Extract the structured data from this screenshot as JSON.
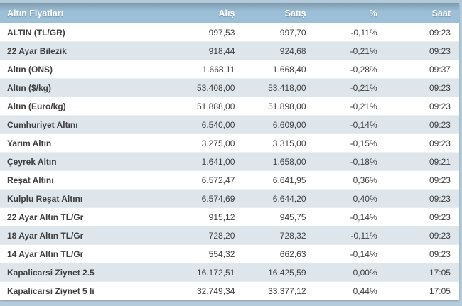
{
  "theme": {
    "page_bg": "#b4cbdb",
    "header_bg": "#9cc0d8",
    "header_fg": "#ffffff",
    "alt_row_bg": "#dee5eb",
    "text_color": "#3f3f3f"
  },
  "table": {
    "columns": {
      "name": "Altın Fiyatları",
      "buy": "Alış",
      "sell": "Satış",
      "pct": "%",
      "time": "Saat"
    },
    "rows": [
      {
        "name": "ALTIN (TL/GR)",
        "buy": "997,53",
        "sell": "997,70",
        "pct": "-0,11%",
        "time": "09:23"
      },
      {
        "name": "22 Ayar Bilezik",
        "buy": "918,44",
        "sell": "924,68",
        "pct": "-0,21%",
        "time": "09:23"
      },
      {
        "name": "Altın (ONS)",
        "buy": "1.668,11",
        "sell": "1.668,40",
        "pct": "-0,28%",
        "time": "09:37"
      },
      {
        "name": "Altın ($/kg)",
        "buy": "53.408,00",
        "sell": "53.418,00",
        "pct": "-0,21%",
        "time": "09:23"
      },
      {
        "name": "Altın (Euro/kg)",
        "buy": "51.888,00",
        "sell": "51.898,00",
        "pct": "-0,21%",
        "time": "09:23"
      },
      {
        "name": "Cumhuriyet Altını",
        "buy": "6.540,00",
        "sell": "6.609,00",
        "pct": "-0,14%",
        "time": "09:23"
      },
      {
        "name": "Yarım Altın",
        "buy": "3.275,00",
        "sell": "3.315,00",
        "pct": "-0,15%",
        "time": "09:23"
      },
      {
        "name": "Çeyrek Altın",
        "buy": "1.641,00",
        "sell": "1.658,00",
        "pct": "-0,18%",
        "time": "09:21"
      },
      {
        "name": "Reşat Altını",
        "buy": "6.572,47",
        "sell": "6.641,95",
        "pct": "0,36%",
        "time": "09:23"
      },
      {
        "name": "Kulplu Reşat Altını",
        "buy": "6.574,69",
        "sell": "6.644,20",
        "pct": "0,40%",
        "time": "09:23"
      },
      {
        "name": "22 Ayar Altın TL/Gr",
        "buy": "915,12",
        "sell": "945,75",
        "pct": "-0,14%",
        "time": "09:23"
      },
      {
        "name": "18 Ayar Altın TL/Gr",
        "buy": "728,20",
        "sell": "728,32",
        "pct": "-0,11%",
        "time": "09:23"
      },
      {
        "name": "14 Ayar Altın TL/Gr",
        "buy": "554,32",
        "sell": "662,63",
        "pct": "-0,14%",
        "time": "09:23"
      },
      {
        "name": "Kapalicarsi Ziynet 2.5",
        "buy": "16.172,51",
        "sell": "16.425,59",
        "pct": "0,00%",
        "time": "17:05"
      },
      {
        "name": "Kapalicarsi Ziynet 5 li",
        "buy": "32.749,34",
        "sell": "33.377,12",
        "pct": "0,44%",
        "time": "17:05"
      }
    ]
  }
}
